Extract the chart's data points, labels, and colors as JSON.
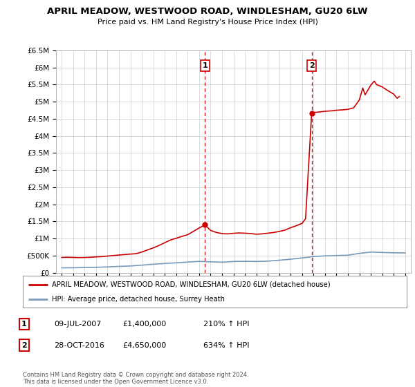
{
  "title": "APRIL MEADOW, WESTWOOD ROAD, WINDLESHAM, GU20 6LW",
  "subtitle": "Price paid vs. HM Land Registry's House Price Index (HPI)",
  "ylim": [
    0,
    6500000
  ],
  "yticks": [
    0,
    500000,
    1000000,
    1500000,
    2000000,
    2500000,
    3000000,
    3500000,
    4000000,
    4500000,
    5000000,
    5500000,
    6000000,
    6500000
  ],
  "ytick_labels": [
    "£0",
    "£500K",
    "£1M",
    "£1.5M",
    "£2M",
    "£2.5M",
    "£3M",
    "£3.5M",
    "£4M",
    "£4.5M",
    "£5M",
    "£5.5M",
    "£6M",
    "£6.5M"
  ],
  "xlim_start": 1994.5,
  "xlim_end": 2025.5,
  "red_line_color": "#cc0000",
  "blue_line_color": "#7799bb",
  "marker1_x": 2007.52,
  "marker1_y": 1400000,
  "marker2_x": 2016.83,
  "marker2_y": 4650000,
  "annotation1": {
    "date": "09-JUL-2007",
    "price": "£1,400,000",
    "pct": "210% ↑ HPI"
  },
  "annotation2": {
    "date": "28-OCT-2016",
    "price": "£4,650,000",
    "pct": "634% ↑ HPI"
  },
  "legend_red_label": "APRIL MEADOW, WESTWOOD ROAD, WINDLESHAM, GU20 6LW (detached house)",
  "legend_blue_label": "HPI: Average price, detached house, Surrey Heath",
  "footer": "Contains HM Land Registry data © Crown copyright and database right 2024.\nThis data is licensed under the Open Government Licence v3.0.",
  "background_color": "#ffffff",
  "grid_color": "#cccccc",
  "red_years": [
    1995,
    1995.5,
    1996,
    1996.5,
    1997,
    1997.5,
    1998,
    1998.5,
    1999,
    1999.5,
    2000,
    2000.5,
    2001,
    2001.5,
    2002,
    2002.5,
    2003,
    2003.5,
    2004,
    2004.5,
    2005,
    2005.5,
    2006,
    2006.5,
    2007,
    2007.52,
    2008,
    2008.5,
    2009,
    2009.5,
    2010,
    2010.5,
    2011,
    2011.5,
    2012,
    2012.5,
    2013,
    2013.5,
    2014,
    2014.5,
    2015,
    2015.5,
    2016,
    2016.3,
    2016.83,
    2017,
    2017.5,
    2018,
    2018.5,
    2019,
    2019.5,
    2020,
    2020.5,
    2021,
    2021.3,
    2021.5,
    2022,
    2022.3,
    2022.5,
    2023,
    2023.5,
    2024,
    2024.3,
    2024.5
  ],
  "red_values": [
    450000,
    455000,
    450000,
    445000,
    448000,
    455000,
    465000,
    475000,
    490000,
    505000,
    520000,
    535000,
    548000,
    560000,
    610000,
    670000,
    730000,
    800000,
    880000,
    960000,
    1010000,
    1065000,
    1115000,
    1210000,
    1310000,
    1400000,
    1240000,
    1180000,
    1145000,
    1138000,
    1155000,
    1165000,
    1158000,
    1148000,
    1128000,
    1138000,
    1158000,
    1178000,
    1208000,
    1248000,
    1318000,
    1378000,
    1445000,
    1580000,
    4650000,
    4680000,
    4700000,
    4720000,
    4730000,
    4750000,
    4760000,
    4775000,
    4820000,
    5050000,
    5400000,
    5200000,
    5480000,
    5600000,
    5500000,
    5430000,
    5320000,
    5220000,
    5100000,
    5150000
  ],
  "blue_years": [
    1995,
    1996,
    1997,
    1998,
    1999,
    2000,
    2001,
    2002,
    2003,
    2004,
    2005,
    2006,
    2007,
    2008,
    2009,
    2010,
    2011,
    2012,
    2013,
    2014,
    2015,
    2016,
    2017,
    2018,
    2019,
    2020,
    2021,
    2022,
    2023,
    2024,
    2025
  ],
  "blue_values": [
    145000,
    148000,
    155000,
    162000,
    173000,
    188000,
    200000,
    225000,
    250000,
    275000,
    292000,
    315000,
    335000,
    322000,
    312000,
    332000,
    337000,
    332000,
    342000,
    368000,
    398000,
    435000,
    475000,
    495000,
    505000,
    515000,
    568000,
    608000,
    595000,
    585000,
    582000
  ]
}
